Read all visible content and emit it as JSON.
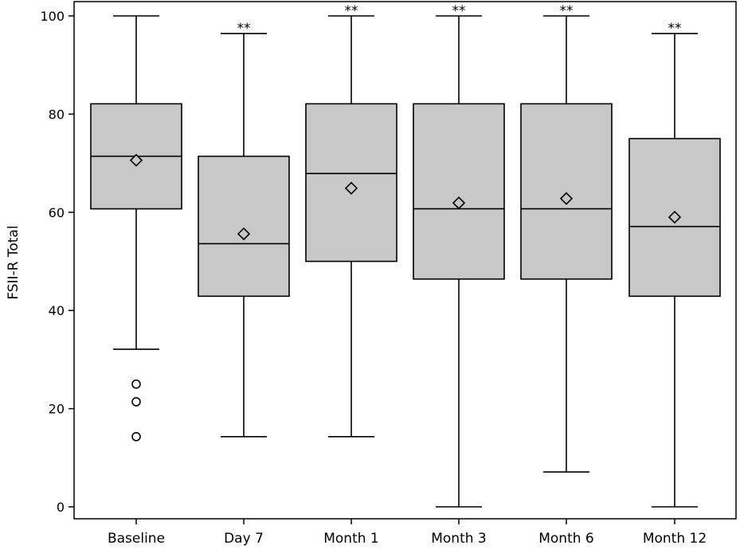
{
  "chart_data": {
    "type": "boxplot",
    "title": "",
    "xlabel": "",
    "ylabel": "FSII-R Total",
    "ylim": [
      0,
      100
    ],
    "yticks": [
      0,
      20,
      40,
      60,
      80,
      100
    ],
    "grid": false,
    "categories": [
      "Baseline",
      "Day 7",
      "Month 1",
      "Month 3",
      "Month 6",
      "Month 12"
    ],
    "boxes": [
      {
        "category": "Baseline",
        "whisker_low": 32.1,
        "q1": 60.7,
        "median": 71.4,
        "q3": 82.1,
        "whisker_high": 100,
        "mean": 70.6,
        "outliers": [
          25.0,
          21.4,
          14.3
        ],
        "annotation": ""
      },
      {
        "category": "Day 7",
        "whisker_low": 14.3,
        "q1": 42.9,
        "median": 53.6,
        "q3": 71.4,
        "whisker_high": 96.4,
        "mean": 55.6,
        "outliers": [],
        "annotation": "**"
      },
      {
        "category": "Month 1",
        "whisker_low": 14.3,
        "q1": 50.0,
        "median": 67.9,
        "q3": 82.1,
        "whisker_high": 100,
        "mean": 64.9,
        "outliers": [],
        "annotation": "**"
      },
      {
        "category": "Month 3",
        "whisker_low": 0,
        "q1": 46.4,
        "median": 60.7,
        "q3": 82.1,
        "whisker_high": 100,
        "mean": 61.9,
        "outliers": [],
        "annotation": "**"
      },
      {
        "category": "Month 6",
        "whisker_low": 7.1,
        "q1": 46.4,
        "median": 60.7,
        "q3": 82.1,
        "whisker_high": 100,
        "mean": 62.8,
        "outliers": [],
        "annotation": "**"
      },
      {
        "category": "Month 12",
        "whisker_low": 0,
        "q1": 42.9,
        "median": 57.1,
        "q3": 75.0,
        "whisker_high": 96.4,
        "mean": 59.0,
        "outliers": [],
        "annotation": "**"
      }
    ],
    "colors": {
      "box_fill": "#c8c8c8",
      "stroke": "#000000",
      "background": "#ffffff"
    }
  }
}
